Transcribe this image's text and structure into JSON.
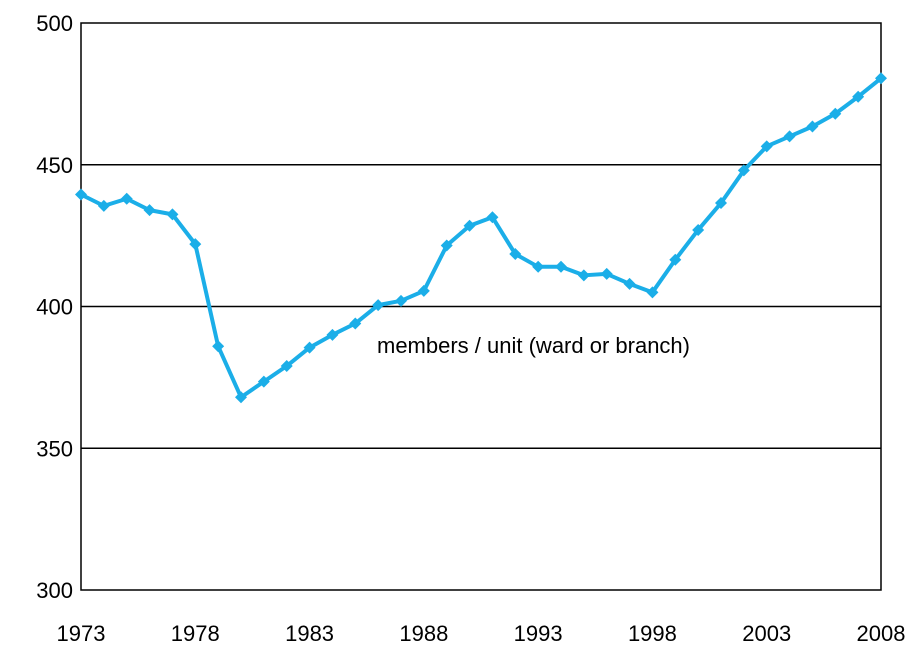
{
  "chart_data": {
    "type": "line",
    "title": "",
    "xlabel": "",
    "ylabel": "",
    "xlim": [
      1973,
      2008
    ],
    "ylim": [
      300,
      500
    ],
    "x_ticks": [
      1973,
      1978,
      1983,
      1988,
      1993,
      1998,
      2003,
      2008
    ],
    "y_ticks": [
      300,
      350,
      400,
      450,
      500
    ],
    "grid": "horizontal",
    "legend": "none",
    "annotation": "members / unit (ward or branch)",
    "series": [
      {
        "name": "members / unit (ward or branch)",
        "color": "#1BAEE8",
        "marker": "diamond",
        "x": [
          1973,
          1974,
          1975,
          1976,
          1977,
          1978,
          1979,
          1980,
          1981,
          1982,
          1983,
          1984,
          1985,
          1986,
          1987,
          1988,
          1989,
          1990,
          1991,
          1992,
          1993,
          1994,
          1995,
          1996,
          1997,
          1998,
          1999,
          2000,
          2001,
          2002,
          2003,
          2004,
          2005,
          2006,
          2007,
          2008
        ],
        "values": [
          439.5,
          435.5,
          438,
          434,
          432.5,
          422,
          386,
          368,
          373.5,
          379,
          385.5,
          390,
          394,
          400.5,
          402,
          405.5,
          421.5,
          428.5,
          431.5,
          418.5,
          414,
          414,
          411,
          411.5,
          408,
          405,
          416.5,
          427,
          436.5,
          448,
          456.5,
          460,
          463.5,
          468,
          474,
          480.5
        ]
      }
    ]
  }
}
